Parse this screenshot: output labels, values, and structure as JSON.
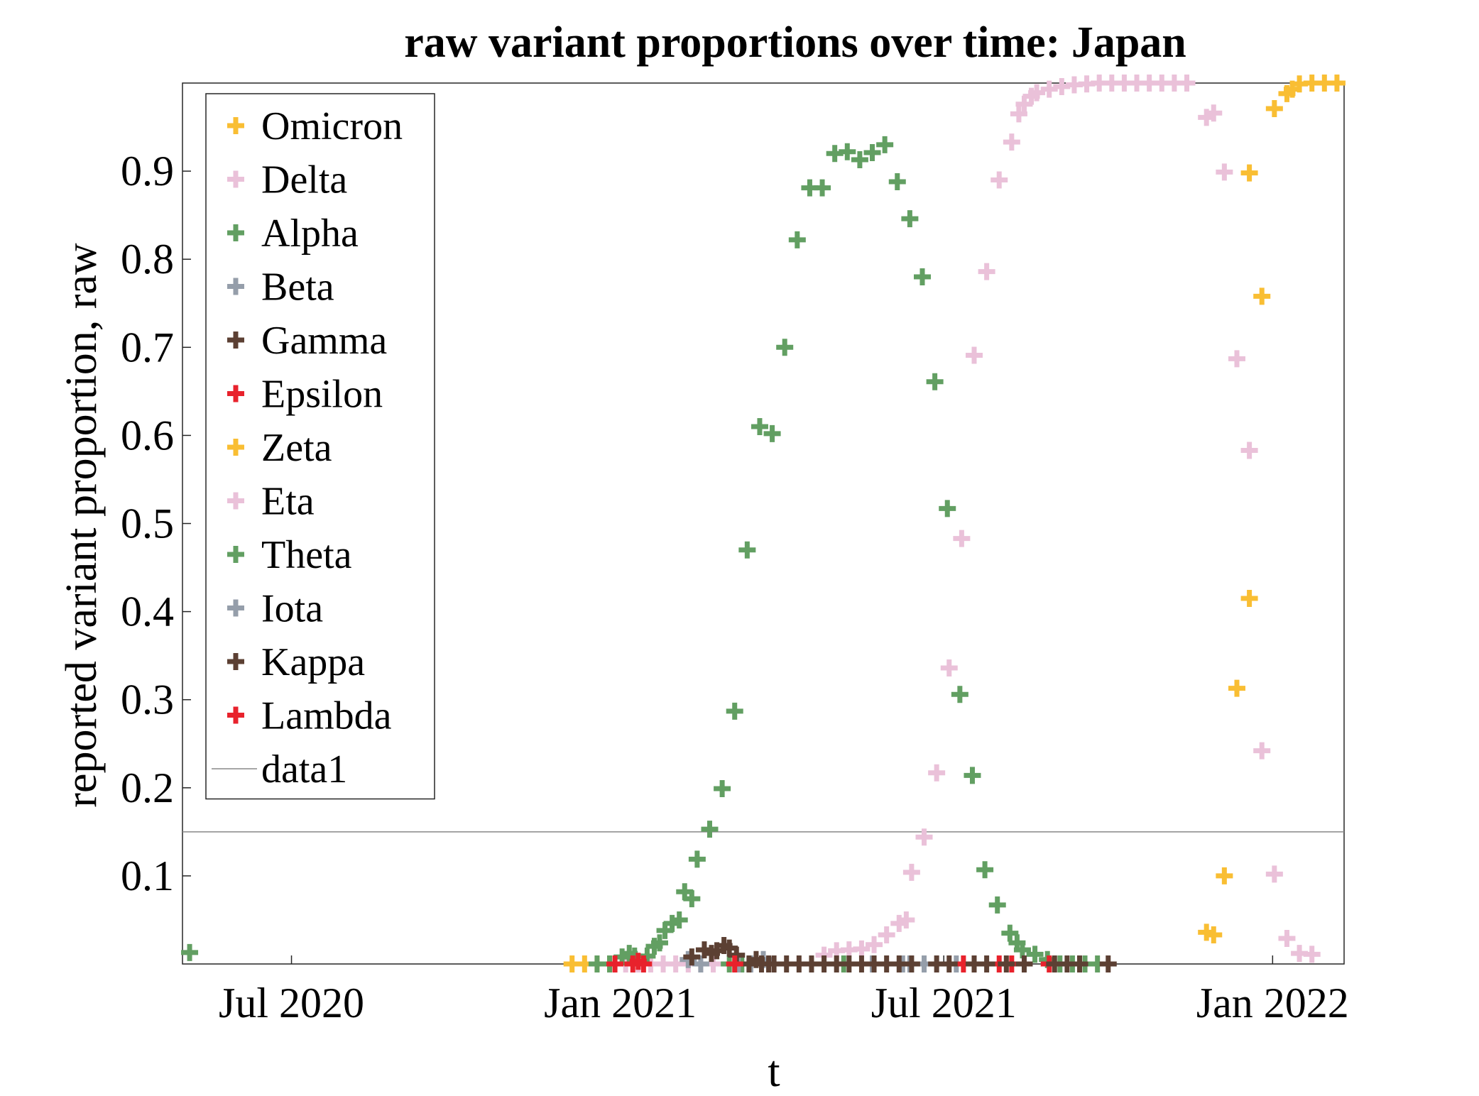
{
  "chart_data": {
    "type": "scatter",
    "title": "raw variant proportions over time: Japan",
    "xlabel": "t",
    "ylabel": "reported variant proportion, raw",
    "x_range": [
      "2020-05-01",
      "2022-02-10"
    ],
    "ylim": [
      0,
      1
    ],
    "x_ticks": [
      {
        "date": "2020-07-01",
        "label": "Jul 2020"
      },
      {
        "date": "2021-01-01",
        "label": "Jan 2021"
      },
      {
        "date": "2021-07-01",
        "label": "Jul 2021"
      },
      {
        "date": "2022-01-01",
        "label": "Jan 2022"
      }
    ],
    "y_ticks": [
      {
        "value": 0.1,
        "label": "0.1"
      },
      {
        "value": 0.2,
        "label": "0.2"
      },
      {
        "value": 0.3,
        "label": "0.3"
      },
      {
        "value": 0.4,
        "label": "0.4"
      },
      {
        "value": 0.5,
        "label": "0.5"
      },
      {
        "value": 0.6,
        "label": "0.6"
      },
      {
        "value": 0.7,
        "label": "0.7"
      },
      {
        "value": 0.8,
        "label": "0.8"
      },
      {
        "value": 0.9,
        "label": "0.9"
      }
    ],
    "grid": false,
    "legend_position": "top-left",
    "marker": "plus",
    "series": [
      {
        "name": "Omicron",
        "color": "#f9be33",
        "points": [
          [
            "2020-12-05",
            0.0
          ],
          [
            "2020-12-12",
            0.0
          ],
          [
            "2020-12-19",
            0.0
          ],
          [
            "2020-12-26",
            0.0
          ],
          [
            "2021-11-25",
            0.036
          ],
          [
            "2021-11-29",
            0.033
          ],
          [
            "2021-12-05",
            0.1
          ],
          [
            "2021-12-12",
            0.313
          ],
          [
            "2021-12-19",
            0.415
          ],
          [
            "2021-12-26",
            0.758
          ],
          [
            "2021-12-19",
            0.898
          ],
          [
            "2022-01-02",
            0.971
          ],
          [
            "2022-01-09",
            0.988
          ],
          [
            "2022-01-12",
            0.993
          ],
          [
            "2022-01-16",
            0.999
          ],
          [
            "2022-01-23",
            1.0
          ],
          [
            "2022-01-30",
            1.0
          ],
          [
            "2022-02-06",
            1.0
          ]
        ]
      },
      {
        "name": "Delta",
        "color": "#eac1d9",
        "points": [
          [
            "2021-01-04",
            0.0
          ],
          [
            "2021-01-11",
            0.0
          ],
          [
            "2021-01-18",
            0.0
          ],
          [
            "2021-01-25",
            0.0
          ],
          [
            "2021-02-01",
            0.0
          ],
          [
            "2021-02-08",
            0.0
          ],
          [
            "2021-02-15",
            0.0
          ],
          [
            "2021-02-22",
            0.0
          ],
          [
            "2021-04-25",
            0.01
          ],
          [
            "2021-05-02",
            0.015
          ],
          [
            "2021-05-09",
            0.016
          ],
          [
            "2021-05-16",
            0.017
          ],
          [
            "2021-05-23",
            0.022
          ],
          [
            "2021-05-30",
            0.033
          ],
          [
            "2021-06-06",
            0.046
          ],
          [
            "2021-06-10",
            0.05
          ],
          [
            "2021-06-13",
            0.104
          ],
          [
            "2021-06-20",
            0.144
          ],
          [
            "2021-06-27",
            0.217
          ],
          [
            "2021-07-04",
            0.336
          ],
          [
            "2021-07-11",
            0.483
          ],
          [
            "2021-07-18",
            0.691
          ],
          [
            "2021-07-25",
            0.786
          ],
          [
            "2021-08-01",
            0.89
          ],
          [
            "2021-08-08",
            0.933
          ],
          [
            "2021-08-12",
            0.965
          ],
          [
            "2021-08-15",
            0.976
          ],
          [
            "2021-08-19",
            0.985
          ],
          [
            "2021-08-22",
            0.989
          ],
          [
            "2021-08-29",
            0.993
          ],
          [
            "2021-09-05",
            0.996
          ],
          [
            "2021-09-12",
            0.998
          ],
          [
            "2021-09-19",
            0.999
          ],
          [
            "2021-09-26",
            1.0
          ],
          [
            "2021-10-03",
            1.0
          ],
          [
            "2021-10-10",
            1.0
          ],
          [
            "2021-10-17",
            1.0
          ],
          [
            "2021-10-24",
            1.0
          ],
          [
            "2021-10-31",
            1.0
          ],
          [
            "2021-11-07",
            1.0
          ],
          [
            "2021-11-14",
            1.0
          ],
          [
            "2021-11-25",
            0.961
          ],
          [
            "2021-11-29",
            0.966
          ],
          [
            "2021-12-05",
            0.899
          ],
          [
            "2021-12-12",
            0.687
          ],
          [
            "2021-12-19",
            0.583
          ],
          [
            "2021-12-26",
            0.242
          ],
          [
            "2022-01-02",
            0.102
          ],
          [
            "2022-01-09",
            0.029
          ],
          [
            "2022-01-16",
            0.012
          ],
          [
            "2022-01-23",
            0.011
          ]
        ]
      },
      {
        "name": "Alpha",
        "color": "#629f62",
        "points": [
          [
            "2020-05-05",
            0.013
          ],
          [
            "2020-12-19",
            0.0
          ],
          [
            "2020-12-26",
            0.0
          ],
          [
            "2021-01-02",
            0.008
          ],
          [
            "2021-01-06",
            0.012
          ],
          [
            "2021-01-09",
            0.009
          ],
          [
            "2021-01-16",
            0.009
          ],
          [
            "2021-01-20",
            0.02
          ],
          [
            "2021-01-23",
            0.024
          ],
          [
            "2021-01-26",
            0.038
          ],
          [
            "2021-01-30",
            0.046
          ],
          [
            "2021-02-03",
            0.05
          ],
          [
            "2021-02-06",
            0.082
          ],
          [
            "2021-02-10",
            0.074
          ],
          [
            "2021-02-13",
            0.119
          ],
          [
            "2021-02-20",
            0.153
          ],
          [
            "2021-02-27",
            0.199
          ],
          [
            "2021-03-06",
            0.287
          ],
          [
            "2021-03-13",
            0.47
          ],
          [
            "2021-03-20",
            0.61
          ],
          [
            "2021-03-27",
            0.602
          ],
          [
            "2021-04-03",
            0.7
          ],
          [
            "2021-04-10",
            0.822
          ],
          [
            "2021-04-17",
            0.881
          ],
          [
            "2021-04-24",
            0.881
          ],
          [
            "2021-05-01",
            0.92
          ],
          [
            "2021-05-08",
            0.922
          ],
          [
            "2021-05-15",
            0.913
          ],
          [
            "2021-05-22",
            0.921
          ],
          [
            "2021-05-29",
            0.93
          ],
          [
            "2021-06-05",
            0.888
          ],
          [
            "2021-06-12",
            0.846
          ],
          [
            "2021-06-19",
            0.78
          ],
          [
            "2021-06-26",
            0.661
          ],
          [
            "2021-07-03",
            0.517
          ],
          [
            "2021-07-10",
            0.306
          ],
          [
            "2021-07-17",
            0.214
          ],
          [
            "2021-07-24",
            0.107
          ],
          [
            "2021-07-31",
            0.067
          ],
          [
            "2021-08-07",
            0.035
          ],
          [
            "2021-08-11",
            0.024
          ],
          [
            "2021-08-14",
            0.016
          ],
          [
            "2021-08-21",
            0.011
          ],
          [
            "2021-08-28",
            0.005
          ],
          [
            "2021-09-04",
            0.0
          ],
          [
            "2021-09-11",
            0.0
          ],
          [
            "2021-09-18",
            0.0
          ],
          [
            "2021-09-25",
            0.0
          ],
          [
            "2021-03-03",
            0.0
          ],
          [
            "2021-03-10",
            0.0
          ],
          [
            "2021-05-06",
            0.0
          ]
        ]
      },
      {
        "name": "Beta",
        "color": "#959eaa",
        "points": [
          [
            "2021-02-08",
            0.005
          ],
          [
            "2021-02-15",
            0.0
          ],
          [
            "2021-03-08",
            0.0
          ],
          [
            "2021-03-15",
            0.0
          ],
          [
            "2021-03-22",
            0.005
          ],
          [
            "2021-05-22",
            0.0
          ],
          [
            "2021-06-08",
            0.0
          ],
          [
            "2021-06-12",
            0.0
          ],
          [
            "2021-06-20",
            0.0
          ],
          [
            "2021-07-08",
            0.0
          ]
        ]
      },
      {
        "name": "Gamma",
        "color": "#5c4033",
        "points": [
          [
            "2021-02-10",
            0.008
          ],
          [
            "2021-02-17",
            0.016
          ],
          [
            "2021-02-21",
            0.012
          ],
          [
            "2021-02-24",
            0.015
          ],
          [
            "2021-02-28",
            0.021
          ],
          [
            "2021-03-03",
            0.018
          ],
          [
            "2021-03-07",
            0.01
          ],
          [
            "2021-03-14",
            0.0
          ],
          [
            "2021-03-18",
            0.005
          ],
          [
            "2021-03-21",
            0.0
          ],
          [
            "2021-03-25",
            0.0
          ],
          [
            "2021-03-28",
            0.0
          ],
          [
            "2021-04-04",
            0.0
          ],
          [
            "2021-04-11",
            0.0
          ],
          [
            "2021-04-18",
            0.0
          ],
          [
            "2021-04-25",
            0.0
          ],
          [
            "2021-05-02",
            0.0
          ],
          [
            "2021-05-09",
            0.0
          ],
          [
            "2021-05-16",
            0.0
          ],
          [
            "2021-05-23",
            0.0
          ],
          [
            "2021-05-30",
            0.0
          ],
          [
            "2021-06-06",
            0.0
          ]
        ]
      },
      {
        "name": "Epsilon",
        "color": "#e8222c",
        "points": [
          [
            "2020-12-29",
            0.0
          ],
          [
            "2021-01-08",
            0.0
          ],
          [
            "2021-01-11",
            0.003
          ],
          [
            "2021-01-14",
            0.0
          ],
          [
            "2021-03-06",
            0.0
          ],
          [
            "2021-07-12",
            0.0
          ],
          [
            "2021-07-18",
            0.0
          ],
          [
            "2021-08-01",
            0.0
          ],
          [
            "2021-08-08",
            0.0
          ],
          [
            "2021-08-29",
            0.0
          ]
        ]
      },
      {
        "name": "Zeta",
        "color": "#f9be33",
        "points": []
      },
      {
        "name": "Eta",
        "color": "#eac1d9",
        "points": []
      },
      {
        "name": "Theta",
        "color": "#629f62",
        "points": []
      },
      {
        "name": "Iota",
        "color": "#959eaa",
        "points": []
      },
      {
        "name": "Kappa",
        "color": "#5c4033",
        "points": [
          [
            "2021-06-13",
            0.0
          ],
          [
            "2021-06-27",
            0.0
          ],
          [
            "2021-07-04",
            0.0
          ],
          [
            "2021-07-18",
            0.0
          ],
          [
            "2021-07-25",
            0.0
          ],
          [
            "2021-08-05",
            0.0
          ],
          [
            "2021-08-15",
            0.0
          ],
          [
            "2021-09-01",
            0.0
          ],
          [
            "2021-09-08",
            0.0
          ],
          [
            "2021-09-15",
            0.0
          ],
          [
            "2021-10-01",
            0.0
          ]
        ]
      },
      {
        "name": "Lambda",
        "color": "#e8222c",
        "points": []
      }
    ],
    "reference_line": {
      "name": "data1",
      "y": 0.15,
      "color": "#888888"
    }
  }
}
